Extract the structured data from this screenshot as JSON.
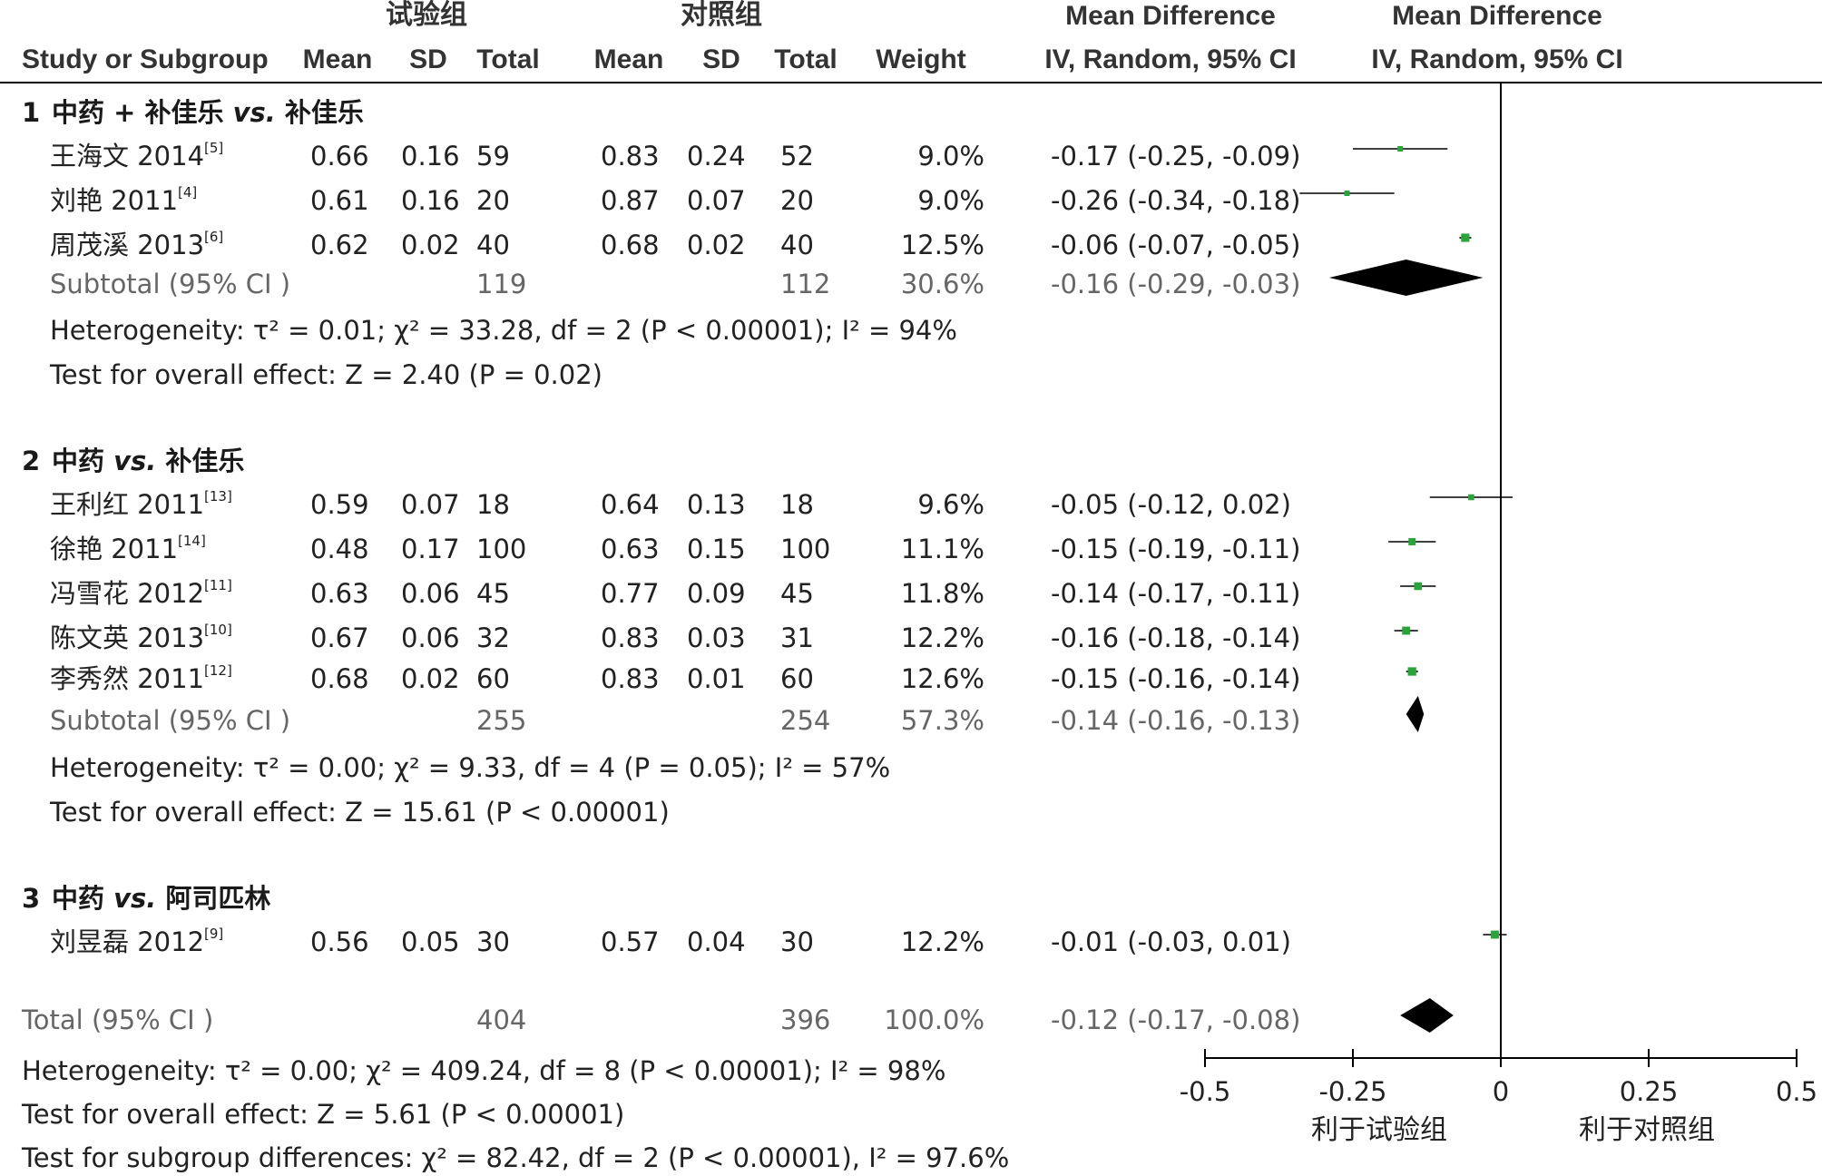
{
  "colors": {
    "square": "#2aa43a",
    "diamond": "#000000",
    "text": "#222222",
    "subtotal_text": "#666666",
    "line": "#000000"
  },
  "header": {
    "group_exp": "试验组",
    "group_ctrl": "对照组",
    "md_title": "Mean Difference",
    "md_method": "IV, Random, 95% CI",
    "plot_title": "Mean Difference",
    "plot_method": "IV, Random, 95% CI",
    "study": "Study or Subgroup",
    "mean": "Mean",
    "sd": "SD",
    "total": "Total",
    "weight": "Weight"
  },
  "chart_data": {
    "type": "forest",
    "xlim": [
      -0.5,
      0.5
    ],
    "xticks": [
      "-0.5",
      "-0.25",
      "0",
      "0.25",
      "0.5"
    ],
    "xtick_values": [
      -0.5,
      -0.25,
      0,
      0.25,
      0.5
    ],
    "favours_left": "利于试验组",
    "favours_right": "利于对照组",
    "subgroups": [
      {
        "num": "1",
        "label_a": "中药 + 补佳乐 ",
        "label_vs": "vs.",
        "label_b": " 补佳乐",
        "studies": [
          {
            "name": "王海文 2014",
            "ref": "[5]",
            "m1": "0.66",
            "sd1": "0.16",
            "n1": "59",
            "m2": "0.83",
            "sd2": "0.24",
            "n2": "52",
            "weight": "9.0%",
            "ci": "-0.17 (-0.25, -0.09)",
            "md": -0.17,
            "lo": -0.25,
            "hi": -0.09,
            "w": 9.0
          },
          {
            "name": "刘艳 2011",
            "ref": "[4]",
            "m1": "0.61",
            "sd1": "0.16",
            "n1": "20",
            "m2": "0.87",
            "sd2": "0.07",
            "n2": "20",
            "weight": "9.0%",
            "ci": "-0.26 (-0.34, -0.18)",
            "md": -0.26,
            "lo": -0.34,
            "hi": -0.18,
            "w": 9.0
          },
          {
            "name": "周茂溪 2013",
            "ref": "[6]",
            "m1": "0.62",
            "sd1": "0.02",
            "n1": "40",
            "m2": "0.68",
            "sd2": "0.02",
            "n2": "40",
            "weight": "12.5%",
            "ci": "-0.06 (-0.07, -0.05)",
            "md": -0.06,
            "lo": -0.07,
            "hi": -0.05,
            "w": 12.5
          }
        ],
        "subtotal": {
          "label": "Subtotal (95% CI )",
          "n1": "119",
          "n2": "112",
          "weight": "30.6%",
          "ci": "-0.16 (-0.29, -0.03)",
          "md": -0.16,
          "lo": -0.29,
          "hi": -0.03
        },
        "heterogeneity": "Heterogeneity: τ² = 0.01; χ² = 33.28, df = 2 (P < 0.00001); I² = 94%",
        "overall": "Test for overall effect: Z = 2.40 (P = 0.02)"
      },
      {
        "num": "2",
        "label_a": "中药 ",
        "label_vs": "vs.",
        "label_b": " 补佳乐",
        "studies": [
          {
            "name": "王利红 2011",
            "ref": "[13]",
            "m1": "0.59",
            "sd1": "0.07",
            "n1": "18",
            "m2": "0.64",
            "sd2": "0.13",
            "n2": "18",
            "weight": "9.6%",
            "ci": "-0.05 (-0.12, 0.02)",
            "md": -0.05,
            "lo": -0.12,
            "hi": 0.02,
            "w": 9.6
          },
          {
            "name": "徐艳 2011",
            "ref": "[14]",
            "m1": "0.48",
            "sd1": "0.17",
            "n1": "100",
            "m2": "0.63",
            "sd2": "0.15",
            "n2": "100",
            "weight": "11.1%",
            "ci": "-0.15 (-0.19, -0.11)",
            "md": -0.15,
            "lo": -0.19,
            "hi": -0.11,
            "w": 11.1
          },
          {
            "name": "冯雪花 2012",
            "ref": "[11]",
            "m1": "0.63",
            "sd1": "0.06",
            "n1": "45",
            "m2": "0.77",
            "sd2": "0.09",
            "n2": "45",
            "weight": "11.8%",
            "ci": "-0.14 (-0.17, -0.11)",
            "md": -0.14,
            "lo": -0.17,
            "hi": -0.11,
            "w": 11.8
          },
          {
            "name": "陈文英 2013",
            "ref": "[10]",
            "m1": "0.67",
            "sd1": "0.06",
            "n1": "32",
            "m2": "0.83",
            "sd2": "0.03",
            "n2": "31",
            "weight": "12.2%",
            "ci": "-0.16 (-0.18, -0.14)",
            "md": -0.16,
            "lo": -0.18,
            "hi": -0.14,
            "w": 12.2
          },
          {
            "name": "李秀然 2011",
            "ref": "[12]",
            "m1": "0.68",
            "sd1": "0.02",
            "n1": "60",
            "m2": "0.83",
            "sd2": "0.01",
            "n2": "60",
            "weight": "12.6%",
            "ci": "-0.15 (-0.16, -0.14)",
            "md": -0.15,
            "lo": -0.16,
            "hi": -0.14,
            "w": 12.6
          }
        ],
        "subtotal": {
          "label": "Subtotal (95% CI )",
          "n1": "255",
          "n2": "254",
          "weight": "57.3%",
          "ci": "-0.14 (-0.16, -0.13)",
          "md": -0.14,
          "lo": -0.16,
          "hi": -0.13
        },
        "heterogeneity": "Heterogeneity: τ² = 0.00; χ² = 9.33, df = 4 (P = 0.05); I² = 57%",
        "overall": "Test for overall effect: Z = 15.61 (P < 0.00001)"
      },
      {
        "num": "3",
        "label_a": "中药 ",
        "label_vs": "vs.",
        "label_b": " 阿司匹林",
        "studies": [
          {
            "name": "刘昱磊 2012",
            "ref": "[9]",
            "m1": "0.56",
            "sd1": "0.05",
            "n1": "30",
            "m2": "0.57",
            "sd2": "0.04",
            "n2": "30",
            "weight": "12.2%",
            "ci": "-0.01 (-0.03, 0.01)",
            "md": -0.01,
            "lo": -0.03,
            "hi": 0.01,
            "w": 12.2
          }
        ]
      }
    ],
    "total": {
      "label": "Total (95% CI )",
      "n1": "404",
      "n2": "396",
      "weight": "100.0%",
      "ci": "-0.12 (-0.17, -0.08)",
      "md": -0.12,
      "lo": -0.17,
      "hi": -0.08
    },
    "footer": [
      "Heterogeneity: τ² = 0.00; χ² = 409.24, df = 8 (P < 0.00001); I² = 98%",
      "Test for overall effect: Z = 5.61 (P < 0.00001)",
      "Test for subgroup differences: χ² = 82.42, df = 2 (P < 0.00001), I² = 97.6%"
    ]
  }
}
